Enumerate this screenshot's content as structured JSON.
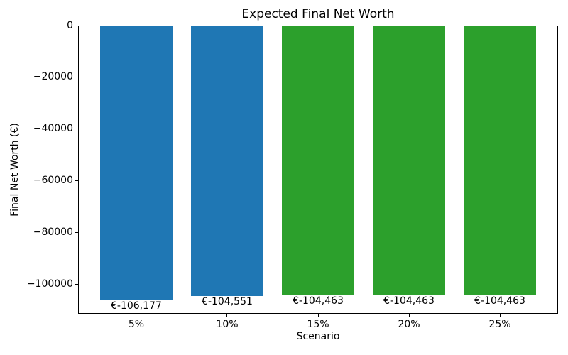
{
  "chart_data": {
    "type": "bar",
    "title": "Expected Final Net Worth",
    "xlabel": "Scenario",
    "ylabel": "Final Net Worth (€)",
    "categories": [
      "5%",
      "10%",
      "15%",
      "20%",
      "25%"
    ],
    "values": [
      -106177,
      -104551,
      -104463,
      -104463,
      -104463
    ],
    "bar_labels": [
      "€-106,177",
      "€-104,551",
      "€-104,463",
      "€-104,463",
      "€-104,463"
    ],
    "bar_colors": [
      "#1f77b4",
      "#1f77b4",
      "#2ca02c",
      "#2ca02c",
      "#2ca02c"
    ],
    "ylim": [
      -111486,
      0
    ],
    "yticks": [
      0,
      -20000,
      -40000,
      -60000,
      -80000,
      -100000
    ],
    "ytick_labels": [
      "0",
      "−20000",
      "−40000",
      "−60000",
      "−80000",
      "−100000"
    ],
    "grid": false,
    "legend_position": "none",
    "background_color": "#ffffff",
    "axis_color": "#000000",
    "text_color": "#000000"
  }
}
